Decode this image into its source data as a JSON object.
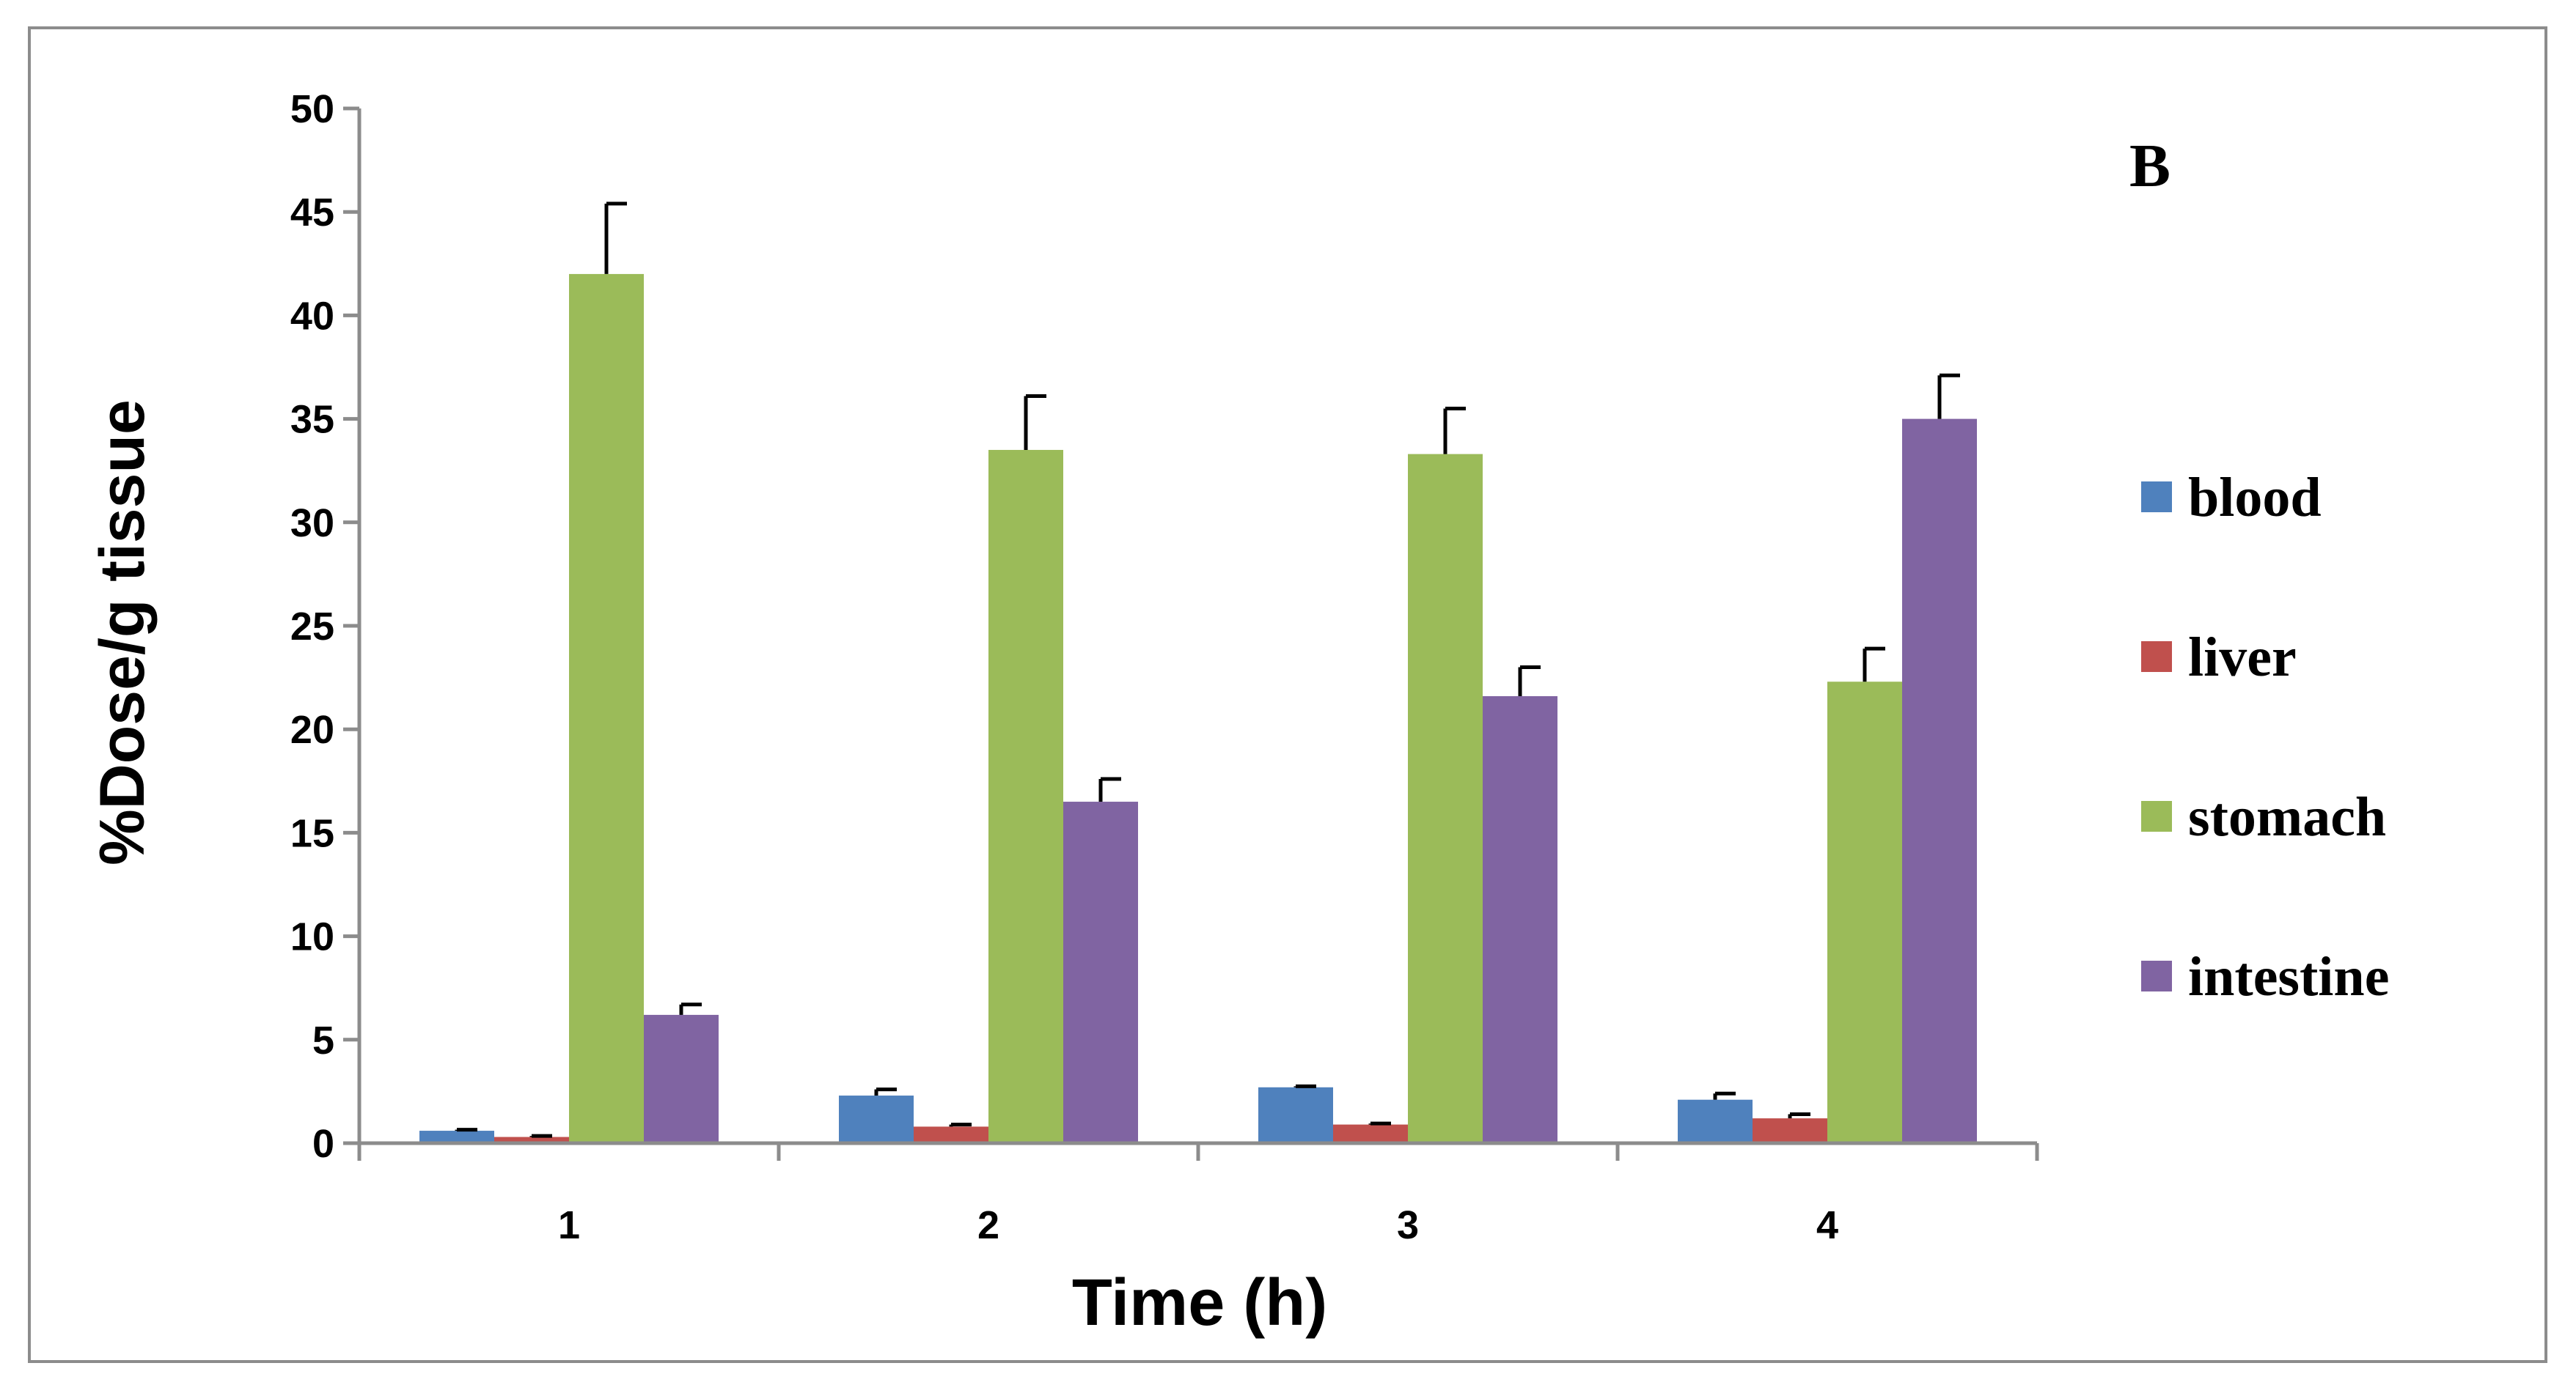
{
  "chart_data": {
    "type": "bar",
    "panel_label": "B",
    "title": "",
    "xlabel": "Time (h)",
    "ylabel": "%Dose/g tissue",
    "categories": [
      "1",
      "2",
      "3",
      "4"
    ],
    "ylim": [
      0,
      50
    ],
    "yticks": [
      0,
      5,
      10,
      15,
      20,
      25,
      30,
      35,
      40,
      45,
      50
    ],
    "ytick_labels": [
      "0",
      "5",
      "10",
      "15",
      "20",
      "25",
      "30",
      "35",
      "40",
      "45",
      "50"
    ],
    "grid": false,
    "legend_position": "right",
    "series": [
      {
        "name": "blood",
        "color": "#4F81BD",
        "values": [
          0.6,
          2.3,
          2.7,
          2.1
        ],
        "errors": [
          0.05,
          0.3,
          0.05,
          0.3
        ]
      },
      {
        "name": "liver",
        "color": "#C0504D",
        "values": [
          0.3,
          0.8,
          0.9,
          1.2
        ],
        "errors": [
          0.05,
          0.1,
          0.05,
          0.2
        ]
      },
      {
        "name": "stomach",
        "color": "#9BBB59",
        "values": [
          42.0,
          33.5,
          33.3,
          22.3
        ],
        "errors": [
          3.4,
          2.6,
          2.2,
          1.6
        ]
      },
      {
        "name": "intestine",
        "color": "#8064A2",
        "values": [
          6.2,
          16.5,
          21.6,
          35.0
        ],
        "errors": [
          0.5,
          1.1,
          1.4,
          2.1
        ]
      }
    ]
  }
}
